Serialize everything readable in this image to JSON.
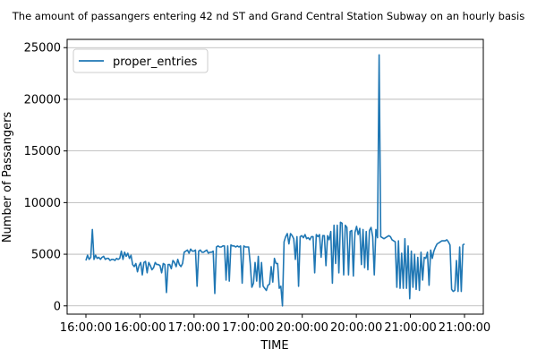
{
  "chart_data": {
    "type": "line",
    "title": "The amount of passangers entering 42 nd ST and Grand Central Station Subway on an hourly basis",
    "xlabel": "TIME",
    "ylabel": "Number of Passangers",
    "x_tick_labels": [
      "16:00:00",
      "16:00:00",
      "17:00:00",
      "17:00:00",
      "20:00:00",
      "20:00:00",
      "21:00:00",
      "21:00:00"
    ],
    "y_ticks": [
      0,
      5000,
      10000,
      15000,
      20000,
      25000
    ],
    "ylim": [
      -800,
      25800
    ],
    "grid": "horizontal",
    "legend_position": "top-left",
    "color": "#1f77b4",
    "series": [
      {
        "name": "proper_entries",
        "values": [
          4400,
          4900,
          4500,
          4700,
          7400,
          4500,
          4900,
          4600,
          4700,
          4500,
          4700,
          4800,
          4500,
          4600,
          4600,
          4400,
          4500,
          4500,
          4400,
          4600,
          4500,
          4600,
          5300,
          4500,
          5200,
          4800,
          5100,
          4600,
          4900,
          4000,
          3800,
          4100,
          3300,
          3900,
          4200,
          3000,
          4200,
          4300,
          3200,
          4200,
          3900,
          3500,
          3700,
          4200,
          4000,
          4000,
          3900,
          3200,
          4100,
          4000,
          1300,
          4000,
          4000,
          3600,
          4400,
          4200,
          3800,
          4500,
          4000,
          3800,
          4100,
          5200,
          5300,
          5400,
          5100,
          5500,
          5300,
          5300,
          5400,
          1900,
          5300,
          5400,
          5200,
          5200,
          5300,
          5400,
          5100,
          5200,
          5200,
          5300,
          1200,
          5700,
          5800,
          5700,
          5700,
          5800,
          5800,
          2500,
          5800,
          2400,
          5900,
          5800,
          5800,
          5700,
          5800,
          5700,
          5800,
          2200,
          5800,
          5700,
          5700,
          5700,
          4100,
          1800,
          2200,
          4200,
          2400,
          4800,
          1800,
          4200,
          1900,
          1700,
          1500,
          2000,
          2100,
          3800,
          2300,
          4600,
          4100,
          4100,
          1700,
          1900,
          0,
          6200,
          6700,
          7000,
          6000,
          7000,
          6800,
          6500,
          4500,
          6700,
          1900,
          6700,
          6800,
          6600,
          6900,
          6500,
          6600,
          6400,
          6700,
          6700,
          3200,
          6900,
          6700,
          6900,
          4700,
          6800,
          6800,
          3900,
          6800,
          6400,
          7200,
          2200,
          7800,
          4100,
          7800,
          3200,
          8100,
          8000,
          3000,
          7800,
          7600,
          3000,
          7200,
          7300,
          2900,
          7100,
          7700,
          6900,
          7500,
          4000,
          7400,
          3700,
          7200,
          3500,
          7300,
          7600,
          6700,
          3000,
          7400,
          6600,
          24300,
          6700,
          6600,
          6500,
          6600,
          6700,
          6800,
          6700,
          6400,
          6300,
          6200,
          1800,
          6300,
          1700,
          5100,
          1700,
          6500,
          1700,
          5800,
          700,
          5300,
          1800,
          5000,
          1600,
          4700,
          1500,
          5200,
          2500,
          4700,
          4600,
          5200,
          2000,
          5400,
          4600,
          5300,
          5700,
          6000,
          6100,
          6200,
          6300,
          6300,
          6300,
          6400,
          6200,
          5900,
          1600,
          1400,
          1500,
          4400,
          1400,
          5700,
          1400,
          5900,
          6000
        ]
      }
    ]
  }
}
